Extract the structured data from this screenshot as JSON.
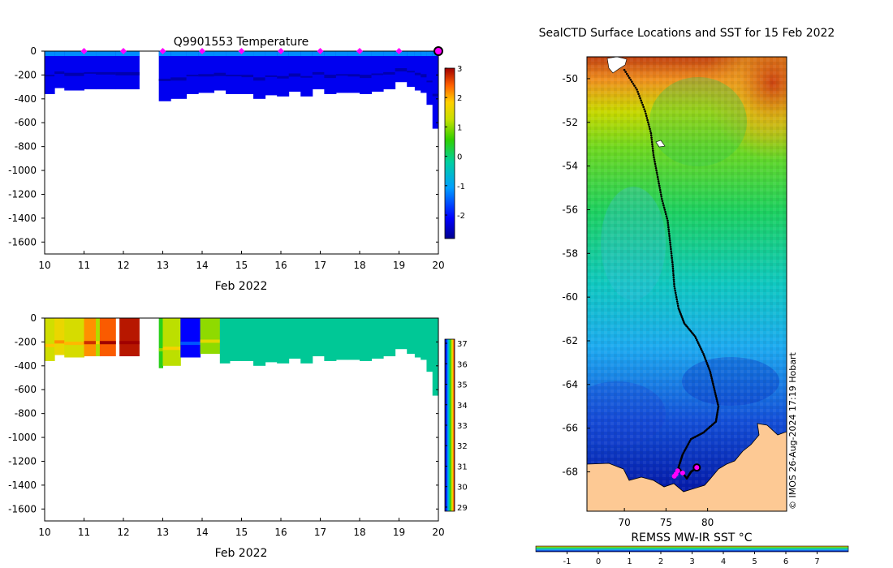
{
  "colors": {
    "land": "#fdc994",
    "track": "#000000",
    "marker": "#ff00ff",
    "salinity_bulk": "#00c896"
  },
  "chart_data": [
    {
      "id": "temperature",
      "type": "heatmap",
      "title": "Q9901553  Temperature",
      "xlabel": "Feb 2022",
      "ylabel": "",
      "xlim": [
        10,
        20
      ],
      "ylim": [
        -1700,
        0
      ],
      "xticks": [
        "10",
        "11",
        "12",
        "13",
        "14",
        "15",
        "16",
        "17",
        "18",
        "19",
        "20"
      ],
      "yticks": [
        "0",
        "-200",
        "-400",
        "-600",
        "-800",
        "-1000",
        "-1200",
        "-1400",
        "-1600"
      ],
      "colorbar": {
        "min": -2.8,
        "max": 3,
        "ticks": [
          "3",
          "2",
          "1",
          "0",
          "-1",
          "-2"
        ]
      },
      "surface_markers_x": [
        11,
        12,
        13,
        14,
        15,
        16,
        17,
        18,
        19
      ],
      "last_position_x": 20,
      "bulk_value": -2.2,
      "profile_x": [
        10.0,
        10.25,
        10.5,
        11.0,
        11.3,
        11.8,
        12.4,
        12.9,
        13.2,
        13.6,
        13.9,
        14.3,
        14.6,
        15.0,
        15.3,
        15.6,
        15.9,
        16.2,
        16.5,
        16.8,
        17.1,
        17.4,
        17.7,
        18.0,
        18.3,
        18.6,
        18.9,
        19.2,
        19.4,
        19.55,
        19.7,
        19.85,
        20.0
      ],
      "profile_depth": [
        360,
        310,
        330,
        320,
        320,
        320,
        0,
        420,
        400,
        360,
        350,
        330,
        360,
        360,
        400,
        370,
        380,
        340,
        380,
        320,
        360,
        350,
        350,
        360,
        340,
        320,
        260,
        300,
        330,
        350,
        450,
        650,
        560
      ]
    },
    {
      "id": "salinity",
      "type": "heatmap",
      "title": "",
      "xlabel": "Feb 2022",
      "ylabel": "",
      "xlim": [
        10,
        20
      ],
      "ylim": [
        -1700,
        0
      ],
      "xticks": [
        "10",
        "11",
        "12",
        "13",
        "14",
        "15",
        "16",
        "17",
        "18",
        "19",
        "20"
      ],
      "yticks": [
        "0",
        "-200",
        "-400",
        "-600",
        "-800",
        "-1000",
        "-1200",
        "-1400",
        "-1600"
      ],
      "colorbar": {
        "min": 28.8,
        "max": 37.2,
        "ticks": [
          "37",
          "36",
          "35",
          "34",
          "33",
          "32",
          "31",
          "30",
          "29"
        ]
      },
      "bulk_value": 32.2,
      "bulk_start_x": 14.45,
      "profile_x": [
        14.45,
        14.7,
        15.0,
        15.3,
        15.6,
        15.9,
        16.2,
        16.5,
        16.8,
        17.1,
        17.4,
        17.7,
        18.0,
        18.3,
        18.6,
        18.9,
        19.2,
        19.4,
        19.55,
        19.7,
        19.85,
        20.0
      ],
      "profile_depth": [
        380,
        360,
        360,
        400,
        370,
        380,
        340,
        380,
        320,
        360,
        350,
        350,
        360,
        340,
        320,
        260,
        300,
        330,
        350,
        450,
        650,
        560
      ],
      "early_bands": [
        {
          "x0": 10.0,
          "x1": 10.25,
          "value": 34.8,
          "depth": 360
        },
        {
          "x0": 10.25,
          "x1": 10.5,
          "value": 35.2,
          "depth": 310
        },
        {
          "x0": 10.5,
          "x1": 11.0,
          "value": 34.9,
          "depth": 330
        },
        {
          "x0": 11.0,
          "x1": 11.3,
          "value": 36.0,
          "depth": 320
        },
        {
          "x0": 11.3,
          "x1": 11.4,
          "value": 34.5,
          "depth": 320
        },
        {
          "x0": 11.4,
          "x1": 11.8,
          "value": 36.4,
          "depth": 320
        },
        {
          "x0": 11.9,
          "x1": 12.4,
          "value": 37.0,
          "depth": 320
        },
        {
          "x0": 12.9,
          "x1": 13.0,
          "value": 33.5,
          "depth": 420
        },
        {
          "x0": 13.0,
          "x1": 13.45,
          "value": 34.6,
          "depth": 400
        },
        {
          "x0": 13.45,
          "x1": 13.95,
          "value": 29.8,
          "depth": 330
        },
        {
          "x0": 13.95,
          "x1": 14.45,
          "value": 34.3,
          "depth": 300
        }
      ]
    },
    {
      "id": "sst-map",
      "type": "heatmap",
      "title": "SealCTD Surface Locations and SST for 15 Feb 2022",
      "xlabel": "",
      "ylabel": "",
      "xlim": [
        65,
        90
      ],
      "ylim": [
        -70,
        -49
      ],
      "xticks": [
        "70",
        "75",
        "80"
      ],
      "yticks": [
        "-50",
        "-52",
        "-54",
        "-56",
        "-58",
        "-60",
        "-62",
        "-64",
        "-66",
        "-68"
      ],
      "colorbar": {
        "label": "REMSS MW-IR SST °C",
        "min": -2,
        "max": 8,
        "ticks": [
          "-1",
          "0",
          "1",
          "2",
          "3",
          "4",
          "5",
          "6",
          "7"
        ]
      },
      "credit": "© IMOS 26-Aug-2024 17:19 Hobart",
      "track": [
        [
          70,
          -49.6
        ],
        [
          71.5,
          -50.5
        ],
        [
          72.5,
          -51.5
        ],
        [
          73.2,
          -52.5
        ],
        [
          73.5,
          -53.5
        ],
        [
          74.0,
          -54.5
        ],
        [
          74.5,
          -55.5
        ],
        [
          75.2,
          -56.5
        ],
        [
          75.5,
          -57.5
        ],
        [
          75.8,
          -58.5
        ],
        [
          76.0,
          -59.5
        ],
        [
          76.5,
          -60.5
        ],
        [
          77.2,
          -61.2
        ],
        [
          78.5,
          -61.8
        ],
        [
          79.5,
          -62.6
        ],
        [
          80.3,
          -63.4
        ],
        [
          80.8,
          -64.2
        ],
        [
          81.3,
          -65.0
        ],
        [
          81.0,
          -65.7
        ],
        [
          79.5,
          -66.2
        ],
        [
          78.0,
          -66.5
        ],
        [
          77.0,
          -67.2
        ],
        [
          76.5,
          -67.8
        ],
        [
          77.5,
          -68.3
        ],
        [
          78.0,
          -68.0
        ],
        [
          78.7,
          -67.8
        ]
      ],
      "clusters": [
        [
          76.2,
          -68.1
        ],
        [
          76.4,
          -67.95
        ],
        [
          76.0,
          -68.2
        ],
        [
          77.0,
          -68.05
        ]
      ],
      "last_position": [
        78.7,
        -67.8
      ]
    }
  ]
}
